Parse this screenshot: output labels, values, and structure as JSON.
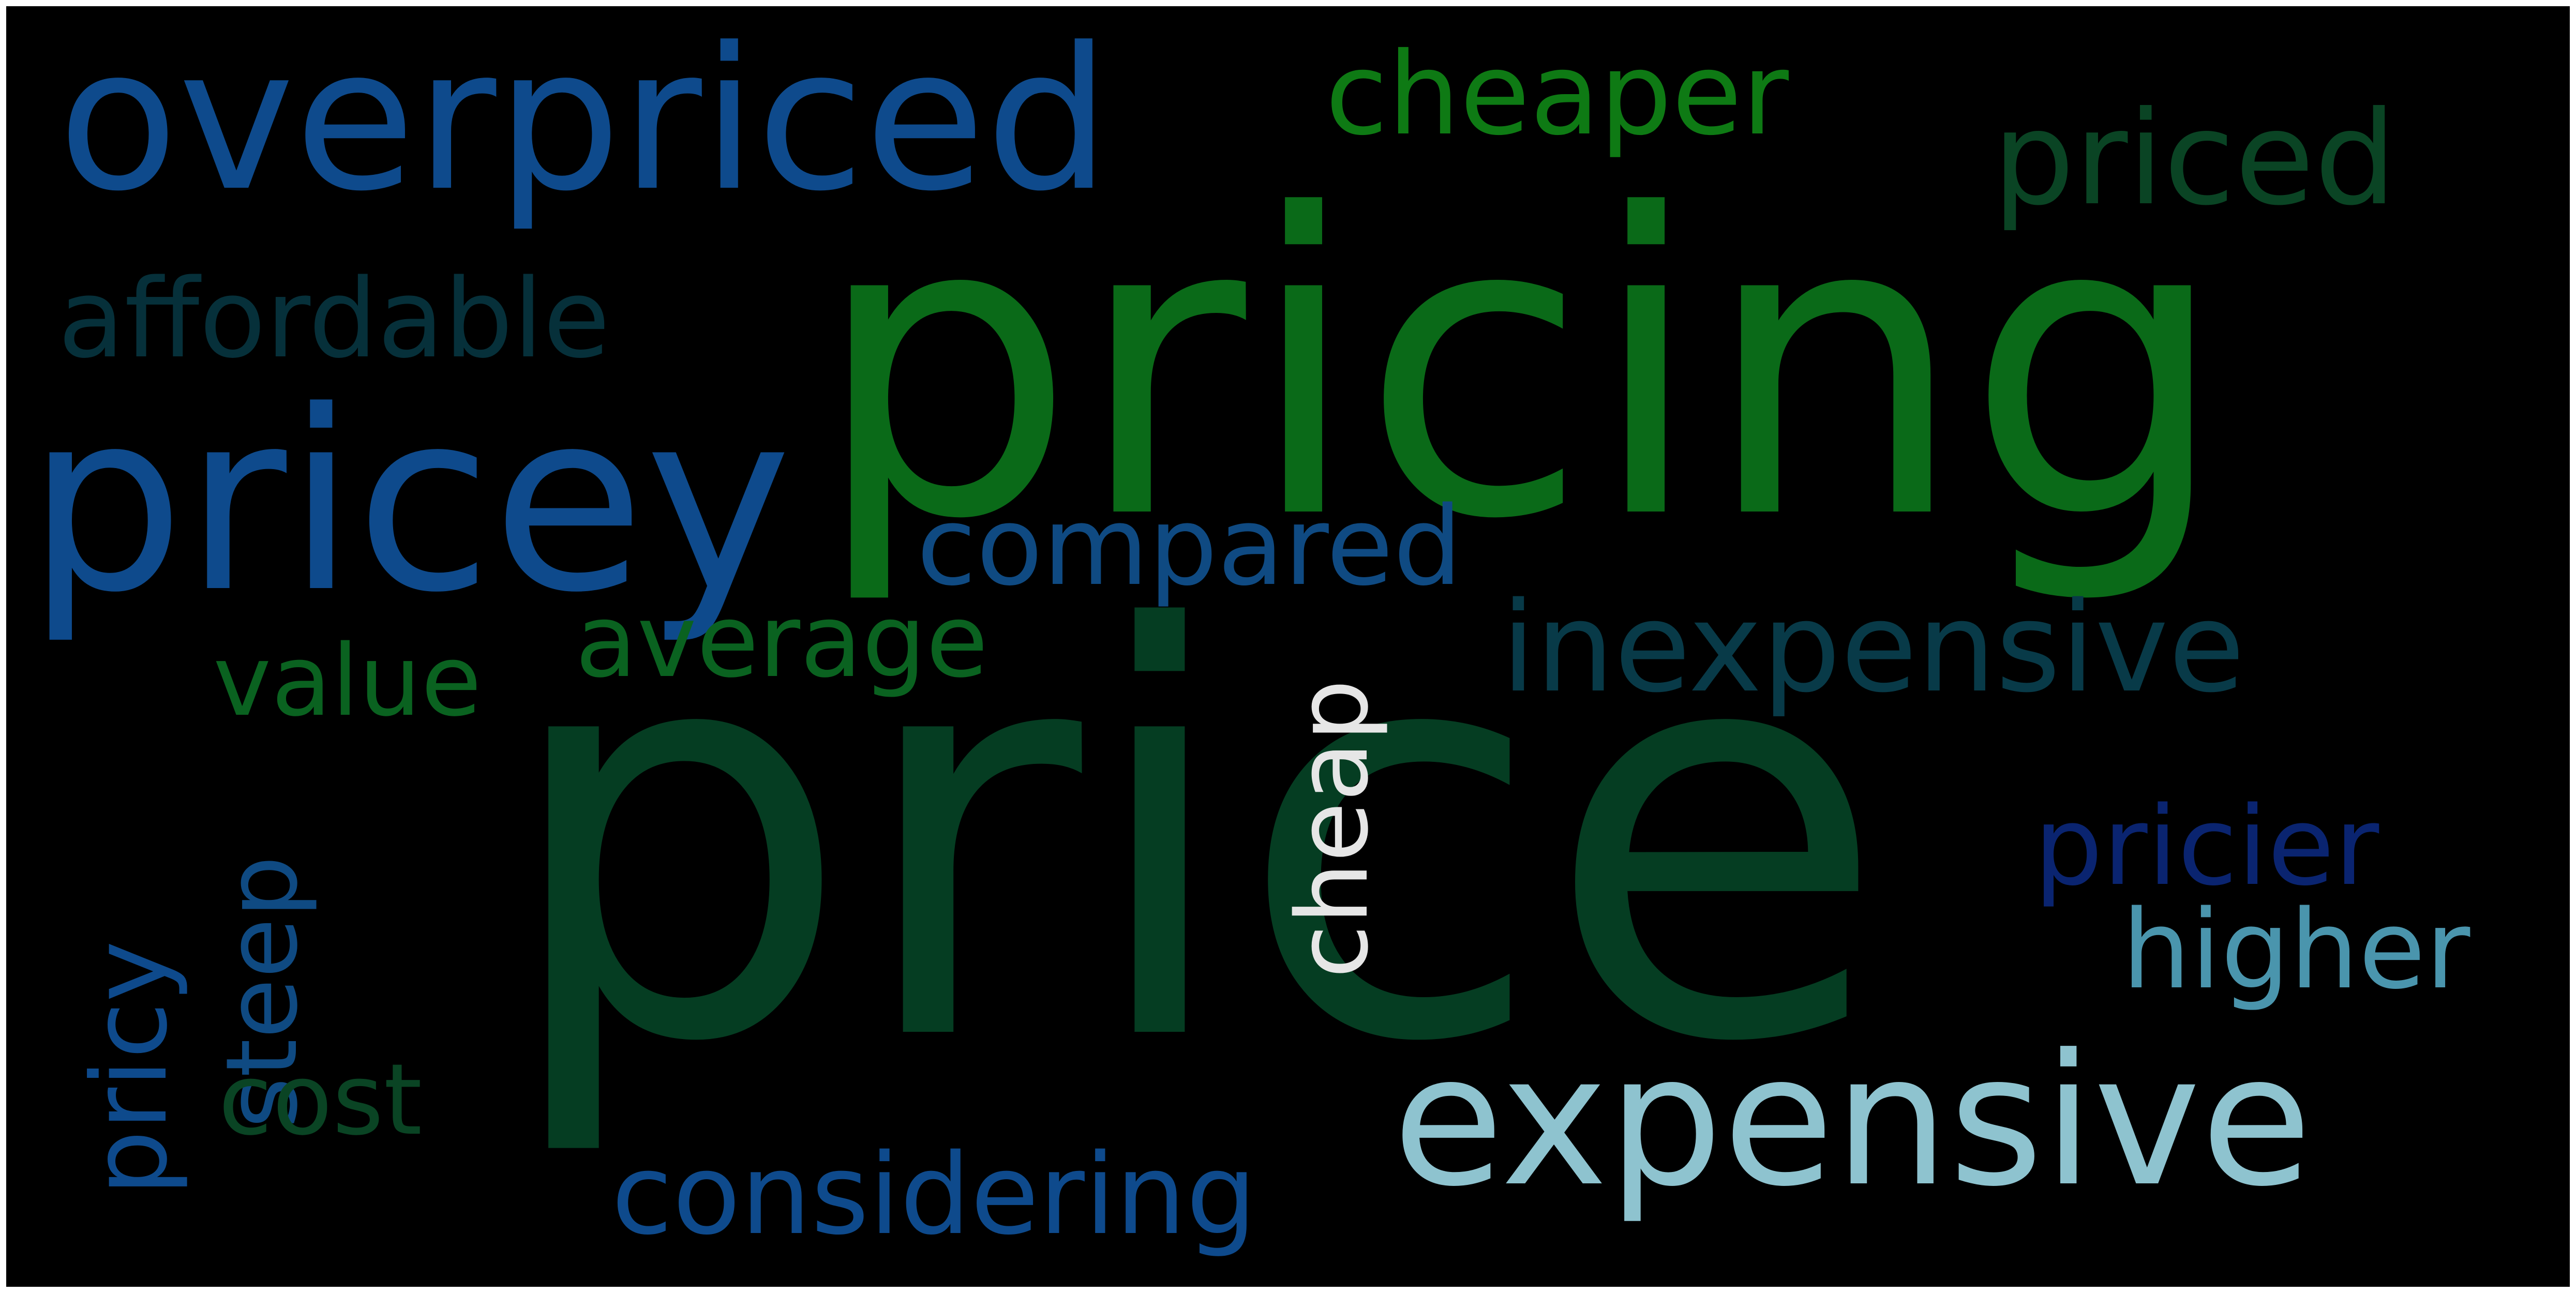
{
  "word_cloud": {
    "background_color": "#000000",
    "words": [
      {
        "id": "price",
        "text": "price",
        "color": "#053d22"
      },
      {
        "id": "pricing",
        "text": "pricing",
        "color": "#0a6a18"
      },
      {
        "id": "overpriced",
        "text": "overpriced",
        "color": "#0e4a8c"
      },
      {
        "id": "pricey",
        "text": "pricey",
        "color": "#0e4a8c"
      },
      {
        "id": "expensive",
        "text": "expensive",
        "color": "#8ec3cf"
      },
      {
        "id": "cheaper",
        "text": "cheaper",
        "color": "#0e7a14"
      },
      {
        "id": "priced",
        "text": "priced",
        "color": "#0a4424"
      },
      {
        "id": "affordable",
        "text": "affordable",
        "color": "#06303a"
      },
      {
        "id": "compared",
        "text": "compared",
        "color": "#0f4a82"
      },
      {
        "id": "inexpensive",
        "text": "inexpensive",
        "color": "#083a48"
      },
      {
        "id": "average",
        "text": "average",
        "color": "#0a6220"
      },
      {
        "id": "value",
        "text": "value",
        "color": "#0a6220"
      },
      {
        "id": "cheap",
        "text": "cheap",
        "color": "#e6e6e6"
      },
      {
        "id": "steep",
        "text": "steep",
        "color": "#0f4a82"
      },
      {
        "id": "pricy",
        "text": "pricy",
        "color": "#0e4a8c"
      },
      {
        "id": "pricier",
        "text": "pricier",
        "color": "#0a2470"
      },
      {
        "id": "higher",
        "text": "higher",
        "color": "#4a95ad"
      },
      {
        "id": "cost",
        "text": "cost",
        "color": "#0a4424"
      },
      {
        "id": "considering",
        "text": "considering",
        "color": "#0e4a8c"
      }
    ]
  }
}
